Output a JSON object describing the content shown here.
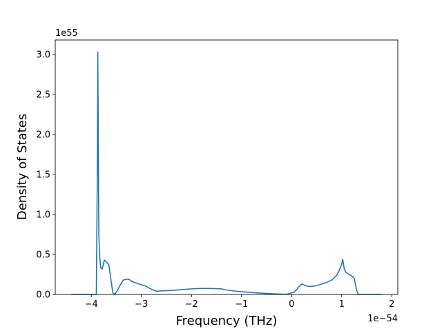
{
  "chart_data": {
    "type": "line",
    "title": "",
    "xlabel": "Frequency (THz)",
    "ylabel": "Density of States",
    "x_offset_text": "1e−54",
    "y_offset_text": "1e55",
    "xlim": [
      -4.72,
      2.12
    ],
    "ylim": [
      0,
      3.18
    ],
    "x_ticks": [
      -4,
      -3,
      -2,
      -1,
      0,
      1,
      2
    ],
    "x_tick_labels": [
      "−4",
      "−3",
      "−2",
      "−1",
      "0",
      "1",
      "2"
    ],
    "y_ticks": [
      0.0,
      0.5,
      1.0,
      1.5,
      2.0,
      2.5,
      3.0
    ],
    "y_tick_labels": [
      "0.0",
      "0.5",
      "1.0",
      "1.5",
      "2.0",
      "2.5",
      "3.0"
    ],
    "grid": false,
    "series": [
      {
        "color": "#1f77b4",
        "x": [
          -4.4,
          -3.9,
          -3.88,
          -3.87,
          -3.85,
          -3.83,
          -3.81,
          -3.78,
          -3.74,
          -3.71,
          -3.69,
          -3.65,
          -3.6,
          -3.57,
          -3.53,
          -3.48,
          -3.42,
          -3.36,
          -3.31,
          -3.25,
          -3.18,
          -3.05,
          -2.9,
          -2.78,
          -2.7,
          -2.6,
          -2.4,
          -2.2,
          -2.0,
          -1.8,
          -1.6,
          -1.4,
          -1.3,
          -1.1,
          -0.9,
          -0.7,
          -0.5,
          -0.3,
          -0.1,
          0.05,
          0.1,
          0.15,
          0.2,
          0.25,
          0.3,
          0.35,
          0.4,
          0.5,
          0.6,
          0.7,
          0.8,
          0.9,
          0.95,
          1.0,
          1.02,
          1.05,
          1.08,
          1.12,
          1.18,
          1.25,
          1.3,
          1.33,
          1.35,
          1.4,
          1.8
        ],
        "y": [
          0.0,
          0.0,
          1.5,
          3.03,
          0.75,
          0.45,
          0.33,
          0.32,
          0.43,
          0.41,
          0.4,
          0.37,
          0.15,
          0.02,
          0.0,
          0.05,
          0.12,
          0.18,
          0.19,
          0.19,
          0.16,
          0.13,
          0.1,
          0.06,
          0.04,
          0.045,
          0.05,
          0.06,
          0.07,
          0.075,
          0.075,
          0.07,
          0.055,
          0.04,
          0.03,
          0.02,
          0.012,
          0.006,
          0.002,
          0.03,
          0.06,
          0.1,
          0.13,
          0.12,
          0.105,
          0.1,
          0.1,
          0.11,
          0.13,
          0.15,
          0.18,
          0.24,
          0.3,
          0.38,
          0.44,
          0.32,
          0.28,
          0.26,
          0.24,
          0.2,
          0.05,
          0.0,
          0.0,
          0.0,
          0.0
        ]
      }
    ]
  }
}
